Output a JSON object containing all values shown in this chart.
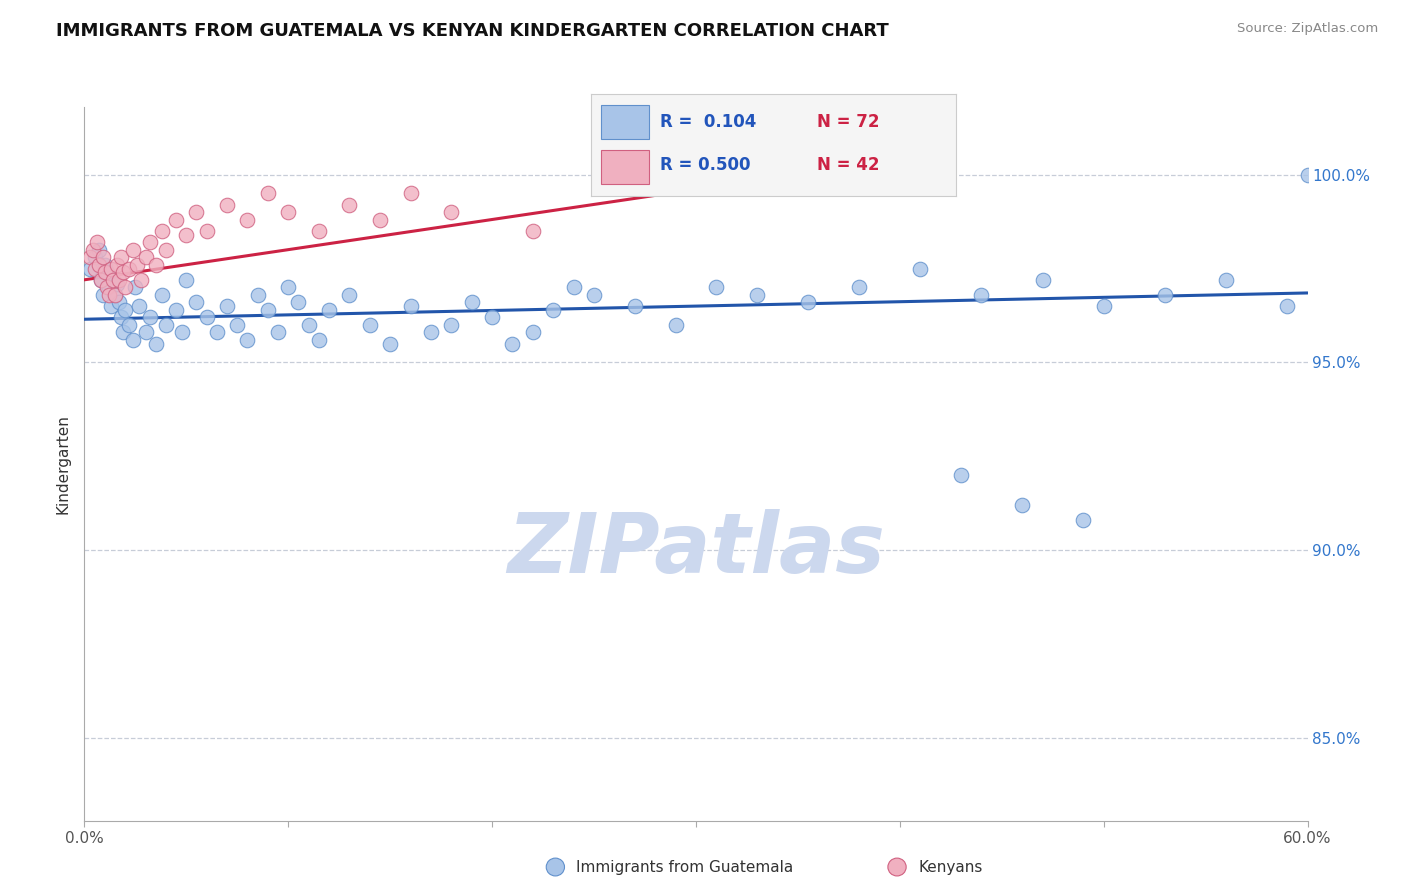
{
  "title": "IMMIGRANTS FROM GUATEMALA VS KENYAN KINDERGARTEN CORRELATION CHART",
  "source": "Source: ZipAtlas.com",
  "ylabel": "Kindergarten",
  "xlim": [
    0.0,
    0.6
  ],
  "ylim": [
    0.828,
    1.018
  ],
  "x_ticks": [
    0.0,
    0.1,
    0.2,
    0.3,
    0.4,
    0.5,
    0.6
  ],
  "x_tick_labels": [
    "0.0%",
    "",
    "",
    "",
    "",
    "",
    "60.0%"
  ],
  "y_ticks_right": [
    0.85,
    0.9,
    0.95,
    1.0
  ],
  "y_tick_labels_right": [
    "85.0%",
    "90.0%",
    "95.0%",
    "100.0%"
  ],
  "grid_color": "#b0b8c8",
  "background_color": "#ffffff",
  "watermark": "ZIPatlas",
  "watermark_color": "#ccd8ee",
  "blue_color": "#a8c4e8",
  "blue_edge": "#6090cc",
  "pink_color": "#f0b0c0",
  "pink_edge": "#d06080",
  "blue_line_color": "#2255aa",
  "pink_line_color": "#cc2244",
  "blue_line_x": [
    0.0,
    0.6
  ],
  "blue_line_y": [
    0.9615,
    0.9685
  ],
  "pink_line_x": [
    0.0,
    0.355
  ],
  "pink_line_y": [
    0.972,
    1.0005
  ],
  "blue_scatter_x": [
    0.003,
    0.005,
    0.007,
    0.008,
    0.009,
    0.01,
    0.011,
    0.012,
    0.013,
    0.014,
    0.015,
    0.016,
    0.017,
    0.018,
    0.019,
    0.02,
    0.022,
    0.024,
    0.025,
    0.027,
    0.03,
    0.032,
    0.035,
    0.038,
    0.04,
    0.045,
    0.048,
    0.05,
    0.055,
    0.06,
    0.065,
    0.07,
    0.075,
    0.08,
    0.085,
    0.09,
    0.095,
    0.1,
    0.105,
    0.11,
    0.115,
    0.12,
    0.13,
    0.14,
    0.15,
    0.16,
    0.17,
    0.18,
    0.19,
    0.2,
    0.21,
    0.22,
    0.23,
    0.24,
    0.25,
    0.27,
    0.29,
    0.31,
    0.33,
    0.355,
    0.38,
    0.41,
    0.44,
    0.47,
    0.5,
    0.53,
    0.56,
    0.59,
    0.6,
    0.43,
    0.46,
    0.49
  ],
  "blue_scatter_y": [
    0.975,
    0.978,
    0.98,
    0.972,
    0.968,
    0.976,
    0.974,
    0.97,
    0.965,
    0.972,
    0.968,
    0.971,
    0.966,
    0.962,
    0.958,
    0.964,
    0.96,
    0.956,
    0.97,
    0.965,
    0.958,
    0.962,
    0.955,
    0.968,
    0.96,
    0.964,
    0.958,
    0.972,
    0.966,
    0.962,
    0.958,
    0.965,
    0.96,
    0.956,
    0.968,
    0.964,
    0.958,
    0.97,
    0.966,
    0.96,
    0.956,
    0.964,
    0.968,
    0.96,
    0.955,
    0.965,
    0.958,
    0.96,
    0.966,
    0.962,
    0.955,
    0.958,
    0.964,
    0.97,
    0.968,
    0.965,
    0.96,
    0.97,
    0.968,
    0.966,
    0.97,
    0.975,
    0.968,
    0.972,
    0.965,
    0.968,
    0.972,
    0.965,
    1.0,
    0.92,
    0.912,
    0.908
  ],
  "pink_scatter_x": [
    0.003,
    0.004,
    0.005,
    0.006,
    0.007,
    0.008,
    0.009,
    0.01,
    0.011,
    0.012,
    0.013,
    0.014,
    0.015,
    0.016,
    0.017,
    0.018,
    0.019,
    0.02,
    0.022,
    0.024,
    0.026,
    0.028,
    0.03,
    0.032,
    0.035,
    0.038,
    0.04,
    0.045,
    0.05,
    0.055,
    0.06,
    0.07,
    0.08,
    0.09,
    0.1,
    0.115,
    0.13,
    0.145,
    0.16,
    0.18,
    0.22,
    0.255
  ],
  "pink_scatter_y": [
    0.978,
    0.98,
    0.975,
    0.982,
    0.976,
    0.972,
    0.978,
    0.974,
    0.97,
    0.968,
    0.975,
    0.972,
    0.968,
    0.976,
    0.972,
    0.978,
    0.974,
    0.97,
    0.975,
    0.98,
    0.976,
    0.972,
    0.978,
    0.982,
    0.976,
    0.985,
    0.98,
    0.988,
    0.984,
    0.99,
    0.985,
    0.992,
    0.988,
    0.995,
    0.99,
    0.985,
    0.992,
    0.988,
    0.995,
    0.99,
    0.985,
    1.0
  ]
}
